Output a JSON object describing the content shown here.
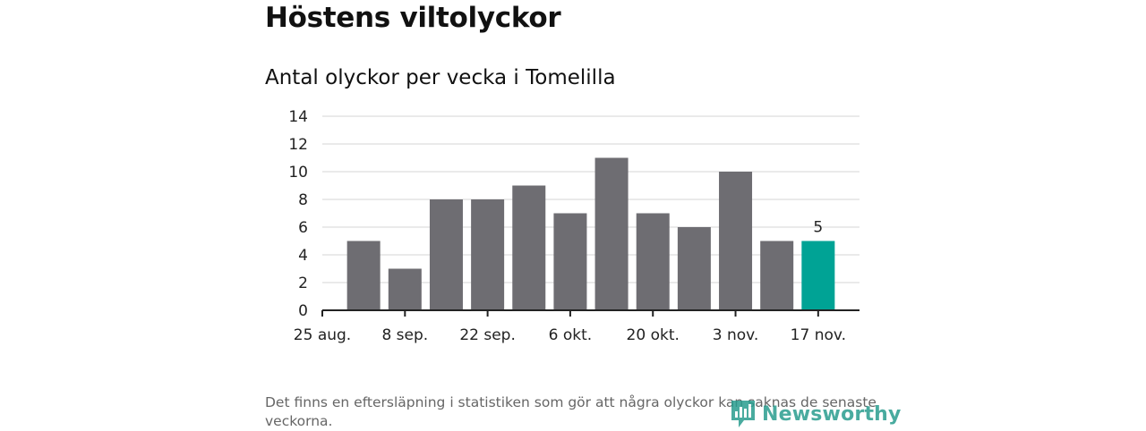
{
  "title": "Höstens viltolyckor",
  "subtitle": "Antal olyckor per vecka i Tomelilla",
  "footnote": "Det finns en eftersläpning i statistiken som gör att några olyckor kan saknas de senaste veckorna.",
  "brand": "Newsworthy",
  "colors": {
    "bar": "#6e6d72",
    "highlight": "#00a395",
    "grid": "#d6d6d6",
    "axis": "#222222",
    "brand": "#2a9d8f"
  },
  "chart_data": {
    "type": "bar",
    "title": "Antal olyckor per vecka i Tomelilla",
    "xlabel": "",
    "ylabel": "",
    "ylim": [
      0,
      14
    ],
    "yticks": [
      0,
      2,
      4,
      6,
      8,
      10,
      12,
      14
    ],
    "x_tick_labels": [
      "25 aug.",
      "8 sep.",
      "22 sep.",
      "6 okt.",
      "20 okt.",
      "3 nov.",
      "17 nov."
    ],
    "values": [
      5,
      3,
      8,
      8,
      9,
      7,
      11,
      7,
      6,
      10,
      5,
      5
    ],
    "highlight_index": 11,
    "data_labels": [
      {
        "index": 11,
        "text": "5"
      }
    ],
    "grid": true,
    "legend": "none"
  }
}
